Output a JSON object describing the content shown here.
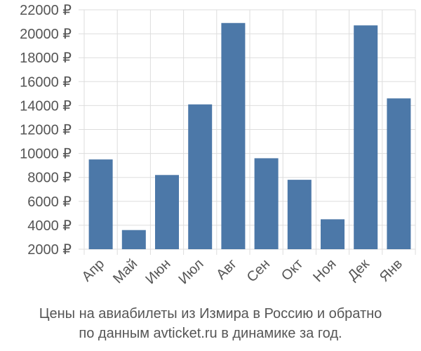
{
  "chart_data": {
    "type": "bar",
    "categories": [
      "Апр",
      "Май",
      "Июн",
      "Июл",
      "Авг",
      "Сен",
      "Окт",
      "Ноя",
      "Дек",
      "Янв"
    ],
    "values": [
      9500,
      3600,
      8200,
      14100,
      20900,
      9600,
      7800,
      4500,
      20700,
      14600
    ],
    "y_ticks": [
      "2000 ₽",
      "4000 ₽",
      "6000 ₽",
      "8000 ₽",
      "10000 ₽",
      "12000 ₽",
      "14000 ₽",
      "16000 ₽",
      "18000 ₽",
      "20000 ₽",
      "22000 ₽"
    ],
    "ylim": [
      2000,
      22000
    ],
    "grid": true,
    "bar_color": "#4c78a8",
    "grid_color": "#dddddd"
  },
  "caption": {
    "line1": "Цены на авиабилеты из Измира в Россию и обратно",
    "line2": "по данным avticket.ru в динамике за год."
  }
}
